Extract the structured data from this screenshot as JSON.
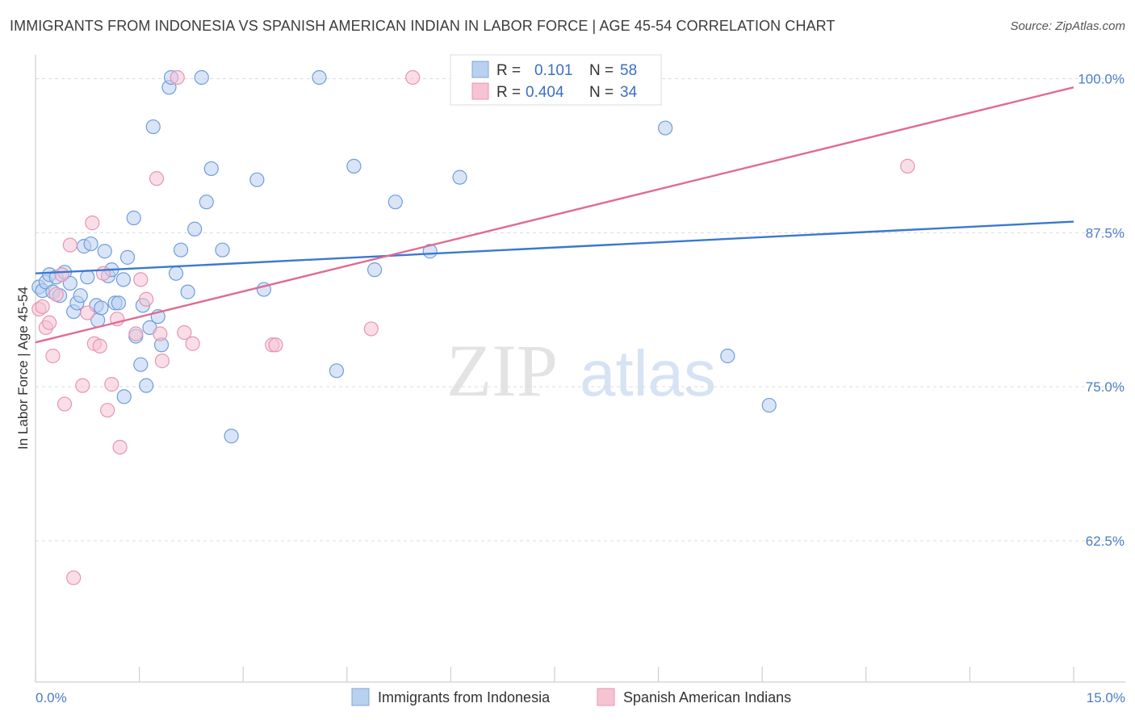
{
  "title": "IMMIGRANTS FROM INDONESIA VS SPANISH AMERICAN INDIAN IN LABOR FORCE | AGE 45-54 CORRELATION CHART",
  "source": "Source: ZipAtlas.com",
  "watermark": {
    "zip": "ZIP",
    "atlas": "atlas"
  },
  "colors": {
    "blue": "#4a84d6",
    "blue_fill": "#b9d0f0",
    "pink": "#e06a93",
    "pink_fill": "#f6c3d3",
    "tick_blue": "#4a7cc7"
  },
  "legend": {
    "r_label": "R =",
    "n_label": "N =",
    "rows": [
      {
        "r": "0.101",
        "n": "58"
      },
      {
        "r": "0.404",
        "n": "34"
      }
    ]
  },
  "chart_data": {
    "type": "scatter",
    "xlabel": "",
    "ylabel": "In Labor Force | Age 45-54",
    "xlim": [
      0,
      15
    ],
    "ylim": [
      50,
      101
    ],
    "x_tick_labels": {
      "left": "0.0%",
      "right": "15.0%"
    },
    "y_ticks": [
      {
        "value": 100,
        "label": "100.0%"
      },
      {
        "value": 87.5,
        "label": "87.5%"
      },
      {
        "value": 75,
        "label": "75.0%"
      },
      {
        "value": 62.5,
        "label": "62.5%"
      }
    ],
    "series": [
      {
        "name": "Immigrants from Indonesia",
        "color": "#4a84d6",
        "r": 0.101,
        "n": 58,
        "trend": {
          "x": [
            0,
            15
          ],
          "y": [
            84.2,
            88.4
          ]
        },
        "points": [
          {
            "x": 0.05,
            "y": 83.1
          },
          {
            "x": 0.1,
            "y": 82.8
          },
          {
            "x": 0.15,
            "y": 83.5
          },
          {
            "x": 0.2,
            "y": 84.1
          },
          {
            "x": 0.25,
            "y": 82.7
          },
          {
            "x": 0.3,
            "y": 83.9
          },
          {
            "x": 0.35,
            "y": 82.4
          },
          {
            "x": 0.42,
            "y": 84.3
          },
          {
            "x": 0.5,
            "y": 83.4
          },
          {
            "x": 0.55,
            "y": 81.1
          },
          {
            "x": 0.6,
            "y": 81.8
          },
          {
            "x": 0.65,
            "y": 82.4
          },
          {
            "x": 0.7,
            "y": 86.4
          },
          {
            "x": 0.75,
            "y": 83.9
          },
          {
            "x": 0.8,
            "y": 86.6
          },
          {
            "x": 0.88,
            "y": 81.6
          },
          {
            "x": 0.9,
            "y": 80.4
          },
          {
            "x": 0.95,
            "y": 81.4
          },
          {
            "x": 1.0,
            "y": 86.0
          },
          {
            "x": 1.05,
            "y": 84.0
          },
          {
            "x": 1.1,
            "y": 84.5
          },
          {
            "x": 1.15,
            "y": 81.8
          },
          {
            "x": 1.2,
            "y": 81.8
          },
          {
            "x": 1.27,
            "y": 83.7
          },
          {
            "x": 1.33,
            "y": 85.5
          },
          {
            "x": 1.42,
            "y": 88.7
          },
          {
            "x": 1.45,
            "y": 79.1
          },
          {
            "x": 1.52,
            "y": 76.8
          },
          {
            "x": 1.55,
            "y": 81.6
          },
          {
            "x": 1.6,
            "y": 75.1
          },
          {
            "x": 1.65,
            "y": 79.8
          },
          {
            "x": 1.7,
            "y": 96.1
          },
          {
            "x": 1.77,
            "y": 80.7
          },
          {
            "x": 1.82,
            "y": 78.4
          },
          {
            "x": 1.93,
            "y": 99.3
          },
          {
            "x": 1.96,
            "y": 100.1
          },
          {
            "x": 2.03,
            "y": 84.2
          },
          {
            "x": 2.1,
            "y": 86.1
          },
          {
            "x": 2.2,
            "y": 82.7
          },
          {
            "x": 2.3,
            "y": 87.8
          },
          {
            "x": 2.4,
            "y": 100.1
          },
          {
            "x": 2.47,
            "y": 90.0
          },
          {
            "x": 2.54,
            "y": 92.7
          },
          {
            "x": 2.7,
            "y": 86.1
          },
          {
            "x": 2.83,
            "y": 71.0
          },
          {
            "x": 3.2,
            "y": 91.8
          },
          {
            "x": 3.3,
            "y": 82.9
          },
          {
            "x": 1.28,
            "y": 74.2
          },
          {
            "x": 4.1,
            "y": 100.1
          },
          {
            "x": 4.35,
            "y": 76.3
          },
          {
            "x": 4.6,
            "y": 92.9
          },
          {
            "x": 4.9,
            "y": 84.5
          },
          {
            "x": 5.2,
            "y": 90.0
          },
          {
            "x": 5.7,
            "y": 86.0
          },
          {
            "x": 6.13,
            "y": 92.0
          },
          {
            "x": 9.1,
            "y": 96.0
          },
          {
            "x": 10.0,
            "y": 77.5
          },
          {
            "x": 10.6,
            "y": 73.5
          }
        ]
      },
      {
        "name": "Spanish American Indians",
        "color": "#e06a93",
        "r": 0.404,
        "n": 34,
        "trend": {
          "x": [
            0,
            15
          ],
          "y": [
            78.6,
            99.3
          ]
        },
        "points": [
          {
            "x": 0.05,
            "y": 81.3
          },
          {
            "x": 0.1,
            "y": 81.5
          },
          {
            "x": 0.15,
            "y": 79.8
          },
          {
            "x": 0.2,
            "y": 80.2
          },
          {
            "x": 0.25,
            "y": 77.5
          },
          {
            "x": 0.3,
            "y": 82.5
          },
          {
            "x": 0.38,
            "y": 84.1
          },
          {
            "x": 0.42,
            "y": 73.6
          },
          {
            "x": 0.5,
            "y": 86.5
          },
          {
            "x": 0.55,
            "y": 59.5
          },
          {
            "x": 0.68,
            "y": 75.1
          },
          {
            "x": 0.75,
            "y": 81.0
          },
          {
            "x": 0.82,
            "y": 88.3
          },
          {
            "x": 0.85,
            "y": 78.5
          },
          {
            "x": 0.93,
            "y": 78.3
          },
          {
            "x": 0.98,
            "y": 84.2
          },
          {
            "x": 1.04,
            "y": 73.1
          },
          {
            "x": 1.1,
            "y": 75.2
          },
          {
            "x": 1.18,
            "y": 80.5
          },
          {
            "x": 1.22,
            "y": 70.1
          },
          {
            "x": 1.45,
            "y": 79.3
          },
          {
            "x": 1.52,
            "y": 83.7
          },
          {
            "x": 1.6,
            "y": 82.1
          },
          {
            "x": 1.75,
            "y": 91.9
          },
          {
            "x": 1.8,
            "y": 79.3
          },
          {
            "x": 1.83,
            "y": 77.1
          },
          {
            "x": 2.05,
            "y": 100.1
          },
          {
            "x": 2.15,
            "y": 79.4
          },
          {
            "x": 2.27,
            "y": 78.5
          },
          {
            "x": 3.42,
            "y": 78.4
          },
          {
            "x": 3.47,
            "y": 78.4
          },
          {
            "x": 4.85,
            "y": 79.7
          },
          {
            "x": 5.45,
            "y": 100.1
          },
          {
            "x": 12.6,
            "y": 92.9
          }
        ]
      }
    ]
  }
}
